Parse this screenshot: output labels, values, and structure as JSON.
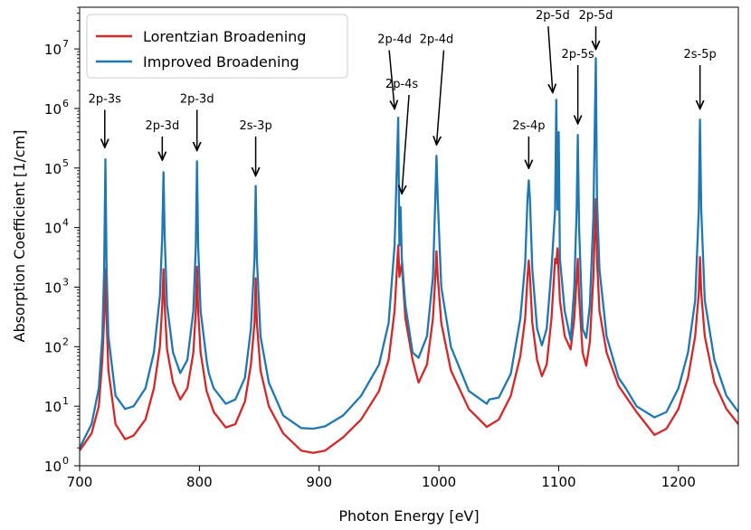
{
  "chart_data": {
    "type": "line",
    "title": "",
    "xlabel": "Photon Energy [eV]",
    "ylabel": "Absorption Coefficient [1/cm]",
    "xlim": [
      700,
      1250
    ],
    "ylim_log10": [
      0,
      7.7
    ],
    "yscale": "log",
    "x_ticks": [
      700,
      800,
      900,
      1000,
      1100,
      1200
    ],
    "y_ticks": [
      {
        "exp": 0,
        "base": "10",
        "sup": "0"
      },
      {
        "exp": 1,
        "base": "10",
        "sup": "1"
      },
      {
        "exp": 2,
        "base": "10",
        "sup": "2"
      },
      {
        "exp": 3,
        "base": "10",
        "sup": "3"
      },
      {
        "exp": 4,
        "base": "10",
        "sup": "4"
      },
      {
        "exp": 5,
        "base": "10",
        "sup": "5"
      },
      {
        "exp": 6,
        "base": "10",
        "sup": "6"
      },
      {
        "exp": 7,
        "base": "10",
        "sup": "7"
      }
    ],
    "legend_position": "top-left",
    "series": [
      {
        "name": "Lorentzian Broadening",
        "color": "#d62728",
        "points": [
          [
            700,
            1.8
          ],
          [
            710,
            3.5
          ],
          [
            716,
            10
          ],
          [
            719,
            60
          ],
          [
            720.5,
            300
          ],
          [
            721.5,
            2000
          ],
          [
            722.5,
            300
          ],
          [
            724,
            40
          ],
          [
            730,
            5
          ],
          [
            738,
            2.8
          ],
          [
            745,
            3.2
          ],
          [
            755,
            6
          ],
          [
            762,
            20
          ],
          [
            767,
            100
          ],
          [
            769,
            500
          ],
          [
            770,
            2000
          ],
          [
            771,
            500
          ],
          [
            773,
            90
          ],
          [
            778,
            25
          ],
          [
            784,
            13
          ],
          [
            790,
            20
          ],
          [
            795,
            80
          ],
          [
            797,
            400
          ],
          [
            798,
            2200
          ],
          [
            799,
            400
          ],
          [
            801,
            80
          ],
          [
            806,
            18
          ],
          [
            812,
            8
          ],
          [
            822,
            4.4
          ],
          [
            830,
            5
          ],
          [
            838,
            12
          ],
          [
            843,
            50
          ],
          [
            846,
            250
          ],
          [
            847,
            1400
          ],
          [
            848,
            250
          ],
          [
            851,
            40
          ],
          [
            858,
            10
          ],
          [
            870,
            3.5
          ],
          [
            885,
            1.8
          ],
          [
            895,
            1.65
          ],
          [
            905,
            1.8
          ],
          [
            920,
            3
          ],
          [
            935,
            6
          ],
          [
            950,
            18
          ],
          [
            958,
            60
          ],
          [
            963,
            400
          ],
          [
            966,
            5000
          ],
          [
            967,
            1500
          ],
          [
            969,
            2500
          ],
          [
            972,
            300
          ],
          [
            978,
            60
          ],
          [
            983,
            25
          ],
          [
            990,
            50
          ],
          [
            995,
            300
          ],
          [
            997,
            1500
          ],
          [
            998,
            4000
          ],
          [
            999,
            1500
          ],
          [
            1002,
            250
          ],
          [
            1010,
            40
          ],
          [
            1025,
            9
          ],
          [
            1040,
            4.5
          ],
          [
            1050,
            6
          ],
          [
            1060,
            15
          ],
          [
            1068,
            70
          ],
          [
            1072,
            300
          ],
          [
            1074,
            1500
          ],
          [
            1075,
            2800
          ],
          [
            1076,
            1500
          ],
          [
            1078,
            250
          ],
          [
            1082,
            60
          ],
          [
            1086,
            32
          ],
          [
            1090,
            50
          ],
          [
            1094,
            300
          ],
          [
            1097,
            3000
          ],
          [
            1098,
            2500
          ],
          [
            1099,
            4500
          ],
          [
            1101,
            600
          ],
          [
            1105,
            150
          ],
          [
            1110,
            90
          ],
          [
            1113,
            300
          ],
          [
            1115,
            1400
          ],
          [
            1116,
            3000
          ],
          [
            1117,
            700
          ],
          [
            1120,
            80
          ],
          [
            1123,
            48
          ],
          [
            1126,
            120
          ],
          [
            1129,
            1500
          ],
          [
            1131,
            30000
          ],
          [
            1132,
            3000
          ],
          [
            1134,
            400
          ],
          [
            1140,
            80
          ],
          [
            1150,
            22
          ],
          [
            1165,
            8
          ],
          [
            1180,
            3.3
          ],
          [
            1190,
            4.2
          ],
          [
            1200,
            9
          ],
          [
            1208,
            30
          ],
          [
            1214,
            150
          ],
          [
            1217,
            800
          ],
          [
            1218,
            3200
          ],
          [
            1219,
            800
          ],
          [
            1222,
            150
          ],
          [
            1230,
            25
          ],
          [
            1240,
            9
          ],
          [
            1250,
            5
          ]
        ]
      },
      {
        "name": "Improved Broadening",
        "color": "#1f77b4",
        "points": [
          [
            700,
            2
          ],
          [
            710,
            5
          ],
          [
            716,
            20
          ],
          [
            719,
            150
          ],
          [
            720.5,
            2000
          ],
          [
            721.5,
            140000
          ],
          [
            722.5,
            2000
          ],
          [
            724,
            150
          ],
          [
            730,
            15
          ],
          [
            738,
            9
          ],
          [
            745,
            10
          ],
          [
            755,
            20
          ],
          [
            762,
            80
          ],
          [
            767,
            700
          ],
          [
            769,
            7000
          ],
          [
            770,
            85000
          ],
          [
            771,
            7000
          ],
          [
            773,
            500
          ],
          [
            778,
            80
          ],
          [
            784,
            36
          ],
          [
            790,
            60
          ],
          [
            795,
            400
          ],
          [
            797,
            5000
          ],
          [
            798,
            130000
          ],
          [
            799,
            5000
          ],
          [
            801,
            400
          ],
          [
            806,
            60
          ],
          [
            807,
            45
          ],
          [
            808,
            35
          ],
          [
            812,
            20
          ],
          [
            822,
            11
          ],
          [
            830,
            13
          ],
          [
            838,
            30
          ],
          [
            843,
            200
          ],
          [
            846,
            3000
          ],
          [
            847,
            50000
          ],
          [
            848,
            3000
          ],
          [
            851,
            150
          ],
          [
            858,
            25
          ],
          [
            870,
            7
          ],
          [
            885,
            4.3
          ],
          [
            895,
            4.2
          ],
          [
            905,
            4.6
          ],
          [
            920,
            7
          ],
          [
            935,
            15
          ],
          [
            950,
            50
          ],
          [
            958,
            250
          ],
          [
            963,
            5000
          ],
          [
            966,
            700000
          ],
          [
            967,
            5000
          ],
          [
            968,
            22000
          ],
          [
            969,
            3000
          ],
          [
            972,
            500
          ],
          [
            978,
            80
          ],
          [
            983,
            65
          ],
          [
            990,
            150
          ],
          [
            995,
            1500
          ],
          [
            997,
            30000
          ],
          [
            998,
            160000
          ],
          [
            999,
            30000
          ],
          [
            1002,
            1000
          ],
          [
            1010,
            100
          ],
          [
            1025,
            18
          ],
          [
            1040,
            11
          ],
          [
            1042,
            13
          ],
          [
            1050,
            14
          ],
          [
            1060,
            35
          ],
          [
            1068,
            300
          ],
          [
            1072,
            2500
          ],
          [
            1074,
            30000
          ],
          [
            1075,
            62000
          ],
          [
            1076,
            30000
          ],
          [
            1078,
            2000
          ],
          [
            1082,
            200
          ],
          [
            1086,
            105
          ],
          [
            1090,
            200
          ],
          [
            1094,
            2000
          ],
          [
            1097,
            20000
          ],
          [
            1098,
            1400000
          ],
          [
            1099,
            20000
          ],
          [
            1100,
            400000
          ],
          [
            1101,
            3000
          ],
          [
            1105,
            400
          ],
          [
            1110,
            130
          ],
          [
            1113,
            1000
          ],
          [
            1115,
            20000
          ],
          [
            1116,
            360000
          ],
          [
            1117,
            10000
          ],
          [
            1120,
            200
          ],
          [
            1123,
            140
          ],
          [
            1126,
            500
          ],
          [
            1129,
            15000
          ],
          [
            1131,
            7000000
          ],
          [
            1132,
            30000
          ],
          [
            1134,
            2000
          ],
          [
            1140,
            150
          ],
          [
            1150,
            30
          ],
          [
            1156,
            20
          ],
          [
            1165,
            10
          ],
          [
            1180,
            6.5
          ],
          [
            1190,
            8
          ],
          [
            1200,
            20
          ],
          [
            1208,
            80
          ],
          [
            1214,
            600
          ],
          [
            1217,
            20000
          ],
          [
            1218,
            650000
          ],
          [
            1219,
            20000
          ],
          [
            1222,
            600
          ],
          [
            1230,
            60
          ],
          [
            1240,
            15
          ],
          [
            1250,
            8
          ]
        ]
      }
    ],
    "annotations": [
      {
        "text": "2p-3s",
        "x": 721,
        "y": 180000,
        "label_y_log": 6.1
      },
      {
        "text": "2p-3d",
        "x": 769,
        "y": 110000,
        "label_y_log": 5.65
      },
      {
        "text": "2p-3d",
        "x": 798,
        "y": 160000,
        "label_y_log": 6.1
      },
      {
        "text": "2s-3p",
        "x": 847,
        "y": 60000,
        "label_y_log": 5.65
      },
      {
        "text": "2p-4d",
        "x": 963,
        "y": 800000,
        "label_y_log": 7.1
      },
      {
        "text": "2p-4s",
        "x": 969,
        "y": 30000,
        "label_y_log": 6.35
      },
      {
        "text": "2p-4d",
        "x": 998,
        "y": 200000,
        "label_y_log": 7.1
      },
      {
        "text": "2s-4p",
        "x": 1075,
        "y": 80000,
        "label_y_log": 5.65
      },
      {
        "text": "2p-5d",
        "x": 1095,
        "y": 1500000,
        "label_y_log": 7.5
      },
      {
        "text": "2p-5s",
        "x": 1116,
        "y": 450000,
        "label_y_log": 6.85
      },
      {
        "text": "2p-5d",
        "x": 1131,
        "y": 8000000,
        "label_y_log": 7.5
      },
      {
        "text": "2s-5p",
        "x": 1218,
        "y": 800000,
        "label_y_log": 6.85
      }
    ]
  }
}
